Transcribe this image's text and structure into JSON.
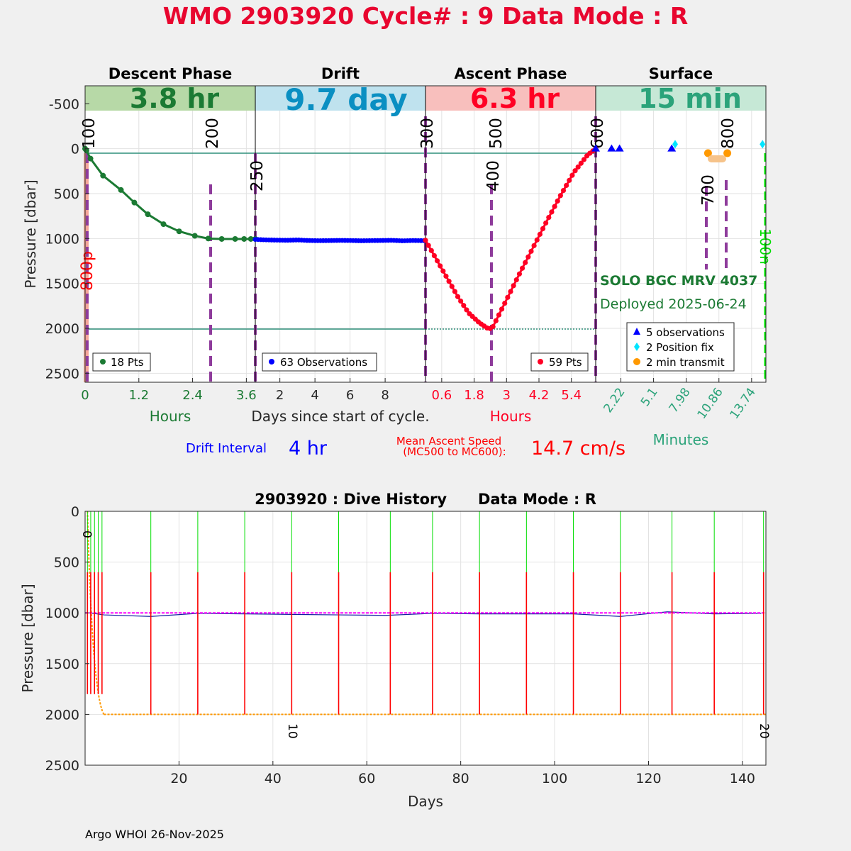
{
  "title": "WMO 2903920   Cycle# : 9   Data Mode : R",
  "colors": {
    "title": "#e8062f",
    "descent": "#1b7a33",
    "descent_band": "#b7d9a7",
    "drift": "#0000ff",
    "drift_band_text": "#0a8fc2",
    "drift_band": "#bfe2ee",
    "ascent": "#ff0024",
    "ascent_band": "#f8bfbd",
    "surface": "#2ba37a",
    "surface_band": "#c6e8d6",
    "phase_marker": "#8e3b9b",
    "hline": "#2f8f7a",
    "position": "#00e5ff",
    "transmit": "#ff9900",
    "history_descent": "#ff9900",
    "history_drift": "#1020a0",
    "history_park": "#ff00ff",
    "history_ascent": "#ff0000",
    "history_surface": "#00dd00"
  },
  "top_panel": {
    "phases": [
      {
        "name": "Descent Phase",
        "duration": "3.8 hr"
      },
      {
        "name": "Drift",
        "duration": "9.7 day"
      },
      {
        "name": "Ascent Phase",
        "duration": "6.3 hr"
      },
      {
        "name": "Surface",
        "duration": "15 min"
      }
    ],
    "ylabel": "Pressure [dbar]",
    "y_ticks": [
      "-500",
      "0",
      "500",
      "1000",
      "1500",
      "2000",
      "2500"
    ],
    "xlabels": [
      "Hours",
      "Days since start of cycle.",
      "Hours",
      "Minutes"
    ],
    "legends": {
      "descent": "18 Pts",
      "drift": "63 Observations",
      "ascent": "59 Pts",
      "surface": [
        "5 observations",
        "2 Position fix",
        "2 min transmit"
      ]
    },
    "float_name": "SOLO BGC MRV 4037",
    "deployed": "Deployed 2025-06-24",
    "side_label_left": "800p",
    "side_label_right": "100n",
    "drift_interval_label": "Drift Interval",
    "drift_interval_value": "4 hr",
    "ascent_speed_label_1": "Mean Ascent Speed",
    "ascent_speed_label_2": "(MC500 to MC600):",
    "ascent_speed_value": "14.7 cm/s"
  },
  "bottom_panel": {
    "title": "2903920 : Dive History      Data Mode : R",
    "xlabel": "Days",
    "ylabel": "Pressure [dbar]",
    "x_ticks": [
      "20",
      "40",
      "60",
      "80",
      "100",
      "120",
      "140"
    ],
    "y_ticks": [
      "0",
      "500",
      "1000",
      "1500",
      "2000",
      "2500"
    ],
    "cycle_labels": [
      "0",
      "10",
      "20"
    ]
  },
  "footer": "Argo WHOI 26-Nov-2025",
  "chart_data": [
    {
      "type": "line",
      "panel": "Descent Phase",
      "xlabel": "Hours",
      "ylabel": "Pressure [dbar]",
      "xlim": [
        0,
        3.8
      ],
      "ylim": [
        2600,
        -700
      ],
      "x_ticks": [
        "0",
        "1.2",
        "2.4",
        "3.6"
      ],
      "grid": true,
      "series": [
        {
          "name": "18 Pts",
          "x": [
            0,
            0.03,
            0.12,
            0.4,
            0.8,
            1.1,
            1.4,
            1.75,
            2.1,
            2.45,
            2.75,
            3.05,
            3.35,
            3.55,
            3.7,
            3.8
          ],
          "y": [
            0,
            20,
            110,
            300,
            460,
            600,
            730,
            840,
            920,
            970,
            1000,
            1005,
            1005,
            1005,
            1005,
            1005
          ]
        }
      ],
      "mission_codes": [
        {
          "label": "100",
          "x": 0.0
        },
        {
          "label": "200",
          "x": 2.75
        }
      ]
    },
    {
      "type": "line",
      "panel": "Drift",
      "xlabel": "Days since start of cycle.",
      "xlim": [
        0.6,
        10.3
      ],
      "ylim": [
        2600,
        -700
      ],
      "x_ticks": [
        "2",
        "4",
        "6",
        "8"
      ],
      "grid": true,
      "series": [
        {
          "name": "63 Observations",
          "x": [
            0.6,
            1.2,
            1.8,
            2.4,
            3.0,
            3.6,
            4.2,
            4.8,
            5.4,
            6.0,
            6.6,
            7.2,
            7.8,
            8.4,
            9.0,
            9.6,
            10.2
          ],
          "y": [
            1010,
            1015,
            1018,
            1020,
            1016,
            1022,
            1024,
            1023,
            1021,
            1022,
            1025,
            1023,
            1022,
            1020,
            1026,
            1022,
            1024
          ]
        }
      ],
      "mission_codes": [
        {
          "label": "250",
          "x": 0.6
        },
        {
          "label": "300",
          "x": 10.3
        }
      ]
    },
    {
      "type": "line",
      "panel": "Ascent Phase",
      "xlabel": "Hours",
      "xlim": [
        0,
        6.3
      ],
      "ylim": [
        2600,
        -700
      ],
      "x_ticks": [
        "0.6",
        "1.8",
        "3",
        "4.2",
        "5.4"
      ],
      "grid": true,
      "series": [
        {
          "name": "59 Pts",
          "x": [
            0,
            0.4,
            0.8,
            1.2,
            1.6,
            2.0,
            2.35,
            2.5,
            3.0,
            3.5,
            4.0,
            4.5,
            5.0,
            5.5,
            6.0,
            6.3
          ],
          "y": [
            1020,
            1230,
            1440,
            1650,
            1830,
            1940,
            2010,
            1980,
            1680,
            1380,
            1090,
            800,
            520,
            260,
            70,
            0
          ]
        }
      ],
      "mission_codes": [
        {
          "label": "400",
          "x": 2.43
        },
        {
          "label": "500",
          "x": 2.43
        },
        {
          "label": "600",
          "x": 6.3
        }
      ]
    },
    {
      "type": "scatter",
      "panel": "Surface",
      "xlabel": "Minutes",
      "xlim": [
        0,
        15
      ],
      "ylim": [
        2600,
        -700
      ],
      "x_ticks": [
        "2.22",
        "5.1",
        "7.98",
        "10.86",
        "13.74"
      ],
      "grid": true,
      "series": [
        {
          "name": "5 observations",
          "x": [
            0,
            1.4,
            2.1,
            6.7
          ],
          "y": [
            0,
            0,
            0,
            0
          ]
        },
        {
          "name": "2 Position fix",
          "x": [
            7.0,
            14.7
          ],
          "y": [
            -50,
            -50
          ]
        },
        {
          "name": "2 min transmit",
          "x": [
            9.9,
            11.6
          ],
          "y": [
            50,
            50
          ]
        }
      ],
      "mission_codes": [
        {
          "label": "700",
          "x": 9.8
        },
        {
          "label": "800",
          "x": 11.6
        }
      ]
    },
    {
      "type": "line",
      "panel": "Dive History",
      "title": "2903920 : Dive History      Data Mode : R",
      "xlabel": "Days",
      "ylabel": "Pressure [dbar]",
      "xlim": [
        0,
        145
      ],
      "ylim": [
        2500,
        0
      ],
      "grid": true,
      "series": [
        {
          "name": "drift",
          "x": [
            1,
            4,
            14,
            24,
            34,
            44,
            54,
            64,
            74,
            84,
            94,
            104,
            114,
            124,
            134,
            144
          ],
          "y": [
            1000,
            1020,
            1035,
            1005,
            1010,
            1015,
            1020,
            1025,
            1005,
            1010,
            1010,
            1010,
            1035,
            990,
            1010,
            1005
          ]
        },
        {
          "name": "park target",
          "x": [
            0,
            145
          ],
          "y": [
            1000,
            1000
          ]
        },
        {
          "name": "profile target",
          "x": [
            4,
            145
          ],
          "y": [
            2000,
            2000
          ]
        },
        {
          "name": "cycle starts",
          "x": [
            0.5,
            1.2,
            2.0,
            2.8,
            3.6,
            14,
            24,
            34,
            44,
            54,
            65,
            74,
            84,
            94,
            104,
            114,
            125,
            134,
            144.5
          ],
          "y": [
            0,
            0,
            0,
            0,
            0,
            0,
            0,
            0,
            0,
            0,
            0,
            0,
            0,
            0,
            0,
            0,
            0,
            0,
            0
          ]
        }
      ],
      "cycle_labels": [
        {
          "label": "0",
          "x": 0.5
        },
        {
          "label": "10",
          "x": 44
        },
        {
          "label": "20",
          "x": 144
        }
      ]
    }
  ]
}
